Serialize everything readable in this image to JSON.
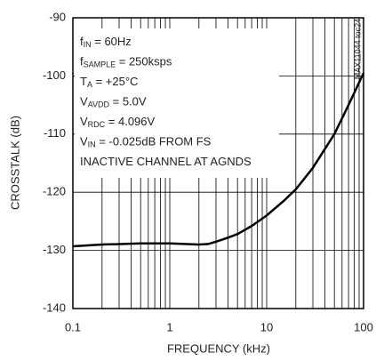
{
  "chart_data": {
    "type": "line",
    "xscale": "log",
    "xlabel": "FREQUENCY (kHz)",
    "ylabel": "CROSSTALK (dB)",
    "side_label": "MAX11044 toc24",
    "x": [
      0.1,
      0.2,
      0.5,
      1,
      2,
      2.5,
      3,
      4,
      5,
      7,
      10,
      15,
      20,
      30,
      50,
      70,
      100
    ],
    "series": [
      {
        "color": "#000000",
        "values": [
          -129.3,
          -129.0,
          -128.8,
          -128.8,
          -129.0,
          -128.9,
          -128.5,
          -127.8,
          -127.2,
          -125.8,
          -124.0,
          -121.5,
          -119.5,
          -115.8,
          -110.0,
          -105.0,
          -99.5
        ]
      }
    ],
    "xlim": [
      0.1,
      100
    ],
    "ylim": [
      -140,
      -90
    ],
    "xticks": [
      0.1,
      1,
      10,
      100
    ],
    "yticks": [
      -140,
      -130,
      -120,
      -110,
      -100,
      -90
    ],
    "xminorticks": [
      0.2,
      0.3,
      0.4,
      0.5,
      0.6,
      0.7,
      0.8,
      0.9,
      2,
      3,
      4,
      5,
      6,
      7,
      8,
      9,
      20,
      30,
      40,
      50,
      60,
      70,
      80,
      90
    ],
    "grid": true,
    "annotations": [
      [
        {
          "text": "f"
        },
        {
          "text": "IN",
          "sub": true
        },
        {
          "text": " = 60Hz"
        }
      ],
      [
        {
          "text": "f"
        },
        {
          "text": "SAMPLE",
          "sub": true
        },
        {
          "text": " = 250ksps"
        }
      ],
      [
        {
          "text": "T"
        },
        {
          "text": "A",
          "sub": true
        },
        {
          "text": " = +25°C"
        }
      ],
      [
        {
          "text": "V"
        },
        {
          "text": "AVDD",
          "sub": true
        },
        {
          "text": " = 5.0V"
        }
      ],
      [
        {
          "text": "V"
        },
        {
          "text": "RDC",
          "sub": true
        },
        {
          "text": " = 4.096V"
        }
      ],
      [
        {
          "text": "V"
        },
        {
          "text": "IN",
          "sub": true
        },
        {
          "text": " = -0.025dB FROM FS"
        }
      ],
      [
        {
          "text": "INACTIVE CHANNEL AT AGNDS"
        }
      ]
    ]
  }
}
